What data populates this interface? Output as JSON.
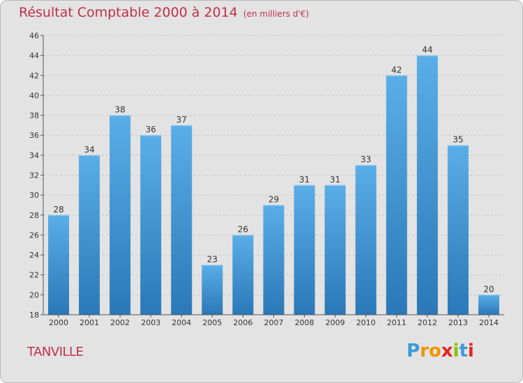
{
  "header": {
    "title": "Résultat Comptable 2000 à 2014",
    "subtitle": "(en milliers d'€)"
  },
  "footer": {
    "commune": "TANVILLE",
    "logo_text": "Proxiti"
  },
  "colors": {
    "title": "#c0304a",
    "bar_top": "#5aaee8",
    "bar_bottom": "#2a78b8",
    "background": "#e3e3e3"
  },
  "chart_data": {
    "type": "bar",
    "title": "Résultat Comptable 2000 à 2014",
    "subtitle": "(en milliers d'€)",
    "categories": [
      "2000",
      "2001",
      "2002",
      "2003",
      "2004",
      "2005",
      "2006",
      "2007",
      "2008",
      "2009",
      "2010",
      "2011",
      "2012",
      "2013",
      "2014"
    ],
    "values": [
      28,
      34,
      38,
      36,
      37,
      23,
      26,
      29,
      31,
      31,
      33,
      42,
      44,
      35,
      20
    ],
    "ylim": [
      18,
      46
    ],
    "yticks": [
      18,
      20,
      22,
      24,
      26,
      28,
      30,
      32,
      34,
      36,
      38,
      40,
      42,
      44,
      46
    ],
    "grid": "horizontal-dashed",
    "legend": "none"
  }
}
